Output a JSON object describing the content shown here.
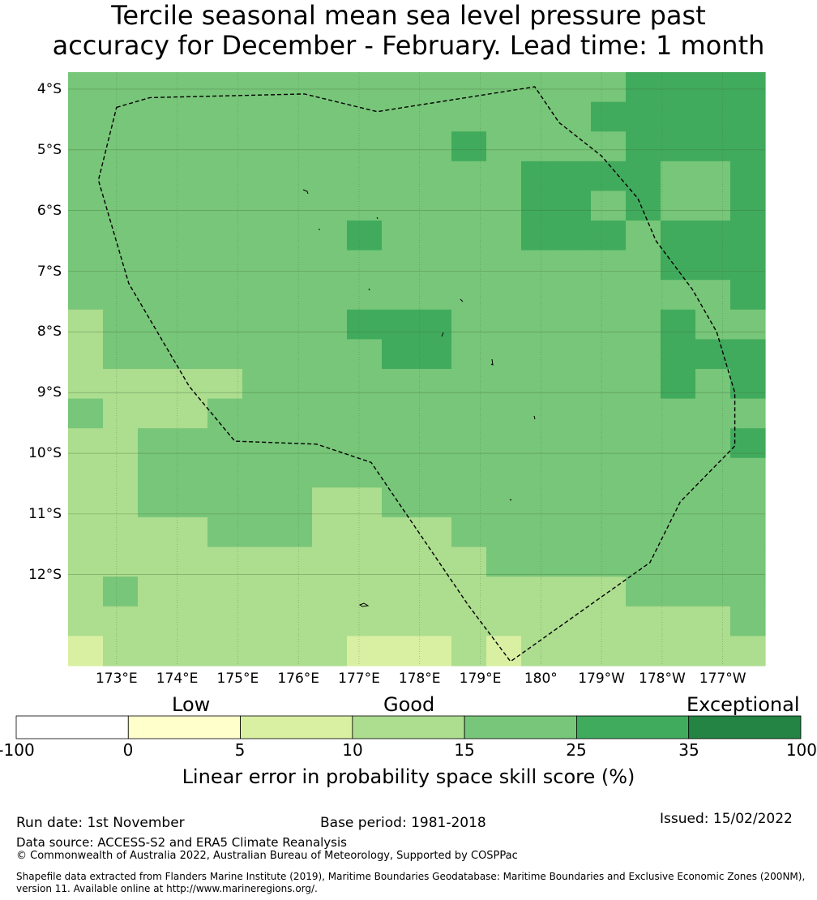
{
  "title": {
    "line1": "Tercile seasonal mean sea level pressure past",
    "line2": "accuracy for December - February. Lead time: 1 month"
  },
  "map": {
    "lat_labels": [
      "4°S",
      "5°S",
      "6°S",
      "7°S",
      "8°S",
      "9°S",
      "10°S",
      "11°S",
      "12°S"
    ],
    "lon_labels": [
      "173°E",
      "174°E",
      "175°E",
      "176°E",
      "177°E",
      "178°E",
      "179°E",
      "180°",
      "179°W",
      "178°W",
      "177°W"
    ],
    "grid_lat_deg": [
      -4,
      -5,
      -6,
      -7,
      -8,
      -9,
      -10,
      -11,
      -12
    ],
    "grid_lon_deg": [
      173,
      174,
      175,
      176,
      177,
      178,
      179,
      180,
      181,
      182,
      183
    ],
    "extent": {
      "lon_min": 172.2,
      "lon_max": 183.7,
      "lat_max": -3.72,
      "lat_min": -13.5
    },
    "eez_boundary": [
      [
        173.0,
        -4.3
      ],
      [
        173.55,
        -4.14
      ],
      [
        176.1,
        -4.08
      ],
      [
        177.3,
        -4.37
      ],
      [
        179.9,
        -3.96
      ],
      [
        180.3,
        -4.55
      ],
      [
        181.0,
        -5.1
      ],
      [
        181.6,
        -5.8
      ],
      [
        181.9,
        -6.5
      ],
      [
        182.5,
        -7.3
      ],
      [
        182.9,
        -8.0
      ],
      [
        183.2,
        -9.0
      ],
      [
        183.2,
        -9.88
      ],
      [
        182.3,
        -10.8
      ],
      [
        181.8,
        -11.8
      ],
      [
        179.5,
        -13.43
      ],
      [
        178.8,
        -12.5
      ],
      [
        177.2,
        -10.15
      ],
      [
        176.3,
        -9.85
      ],
      [
        174.95,
        -9.8
      ],
      [
        174.2,
        -8.9
      ],
      [
        173.2,
        -7.2
      ],
      [
        172.7,
        -5.5
      ]
    ],
    "cell_size_deg": {
      "lon": 0.833,
      "lat": 0.556
    },
    "grid_origin": {
      "lon": 172.2,
      "lat": -3.72
    },
    "cell_classes_legend": "0:0-5, 1:5-10, 2:10-15, 3:15-25, 4:25-35, 5:35-100",
    "cells": [
      "33333333333333334444",
      "33333333333333344444",
      "33333333333433334444",
      "33333333333334444334",
      "33333333333334434334",
      "33333333433334443444",
      "33333333333333333444",
      "33333333333333333334",
      "23333333444333333433",
      "23333333344333333444",
      "22222333333333333434",
      "32223333333333333333",
      "22333333333333333334",
      "22333333333333333333",
      "22333332233333333333",
      "22223332222333333333",
      "22222222222233333333",
      "23222222222222223333",
      "22222222222222222223",
      "12222222111212222222"
    ]
  },
  "colorbar": {
    "categories": [
      "Low",
      "Good",
      "Exceptional"
    ],
    "ticks": [
      "-100",
      "0",
      "5",
      "10",
      "15",
      "25",
      "35",
      "100"
    ],
    "colors": [
      "#ffffff",
      "#ffffcc",
      "#d9f0a3",
      "#addd8e",
      "#78c679",
      "#41ab5d",
      "#238443"
    ],
    "label": "Linear error in probability space skill score (%)"
  },
  "footer": {
    "run_date": "Run date: 1st November",
    "base_period": "Base period: 1981-2018",
    "issued": "Issued: 15/02/2022",
    "data_source": "Data source: ACCESS-S2 and ERA5 Climate Reanalysis",
    "copyright": "© Commonwealth of Australia 2022, Australian Bureau of Meteorology, Supported by COSPPac",
    "shapefile_line1": "Shapefile data extracted from Flanders Marine Institute (2019), Maritime Boundaries Geodatabase: Maritime Boundaries and Exclusive Economic Zones (200NM),",
    "shapefile_line2": "version 11. Available online at http://www.marineregions.org/."
  }
}
